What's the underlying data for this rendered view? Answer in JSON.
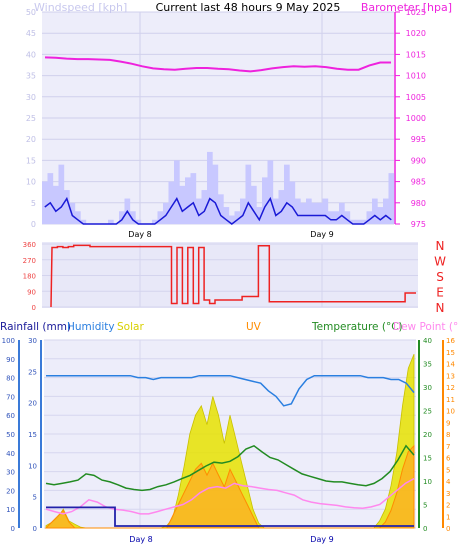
{
  "header": {
    "title": "Current last 48 hours 9 May 2025",
    "left_label": "Windspeed [kph]",
    "right_label": "Barometer [hpa]"
  },
  "colors": {
    "wind_fill": "#c8c8ff",
    "wind_line": "#1a1ad6",
    "barometer": "#ee22dd",
    "direction": "#ee2222",
    "humidity": "#2a7fe0",
    "solar": "#d8d000",
    "uv": "#ff8c00",
    "temperature": "#228b22",
    "dewpoint": "#ff88ee",
    "rain": "#2222aa",
    "left_axis": "#3a7ad8",
    "orange_axis": "#ff8800",
    "green_axis": "#228b22"
  },
  "chart_data": [
    {
      "type": "line",
      "name": "wind-barometer",
      "title": "Current last 48 hours 9 May 2025",
      "ylabel": "Windspeed [kph]",
      "y2label": "Barometer [hpa]",
      "x_ticks": [
        "Day 8",
        "Day 9"
      ],
      "ylim": [
        0,
        50
      ],
      "y_ticks": [
        0,
        5,
        10,
        15,
        20,
        25,
        30,
        35,
        40,
        45,
        50
      ],
      "y2lim": [
        975,
        1025
      ],
      "y2_ticks": [
        975,
        980,
        985,
        990,
        995,
        1000,
        1005,
        1010,
        1015,
        1020,
        1025
      ],
      "series": [
        {
          "name": "Windspeed [kph]",
          "axis": "left",
          "values": [
            4,
            5,
            3,
            4,
            6,
            2,
            1,
            0,
            0,
            0,
            0,
            0,
            0,
            0,
            1,
            3,
            1,
            0,
            0,
            0,
            0,
            1,
            2,
            4,
            6,
            3,
            4,
            5,
            2,
            3,
            6,
            5,
            2,
            1,
            0,
            1,
            2,
            5,
            3,
            1,
            4,
            6,
            2,
            3,
            5,
            4,
            2,
            2,
            2,
            2,
            2,
            2,
            1,
            1,
            2,
            1,
            0,
            0,
            0,
            1,
            2,
            1,
            2,
            1
          ]
        },
        {
          "name": "Wind gust [kph]",
          "axis": "left",
          "values": [
            10,
            12,
            9,
            14,
            8,
            5,
            3,
            1,
            0,
            0,
            0,
            0,
            1,
            0,
            3,
            6,
            3,
            1,
            0,
            0,
            1,
            3,
            5,
            10,
            15,
            9,
            11,
            12,
            6,
            8,
            17,
            14,
            7,
            4,
            2,
            3,
            6,
            14,
            9,
            4,
            11,
            15,
            6,
            8,
            14,
            10,
            6,
            5,
            6,
            5,
            5,
            6,
            3,
            3,
            5,
            3,
            1,
            1,
            1,
            3,
            6,
            4,
            6,
            12
          ]
        },
        {
          "name": "Barometer [hpa]",
          "axis": "right",
          "values": [
            1014.3,
            1014.2,
            1014.0,
            1013.9,
            1013.9,
            1013.8,
            1013.7,
            1013.3,
            1012.8,
            1012.2,
            1011.7,
            1011.5,
            1011.4,
            1011.6,
            1011.8,
            1011.8,
            1011.6,
            1011.5,
            1011.2,
            1011.0,
            1011.3,
            1011.7,
            1012.0,
            1012.2,
            1012.1,
            1012.2,
            1012.0,
            1011.6,
            1011.4,
            1011.4,
            1012.4,
            1013.1,
            1013.1
          ]
        }
      ]
    },
    {
      "type": "line",
      "name": "wind-direction",
      "y_ticks": [
        0,
        90,
        180,
        270,
        360
      ],
      "ylim": [
        0,
        360
      ],
      "compass_labels": [
        "N",
        "W",
        "S",
        "E",
        "N"
      ],
      "series": [
        {
          "name": "Wind direction",
          "values": [
            340,
            345,
            340,
            345,
            352,
            352,
            352,
            345,
            345,
            345,
            345,
            345,
            345,
            345,
            345,
            345,
            345,
            345,
            345,
            345,
            345,
            345,
            20,
            340,
            20,
            340,
            20,
            340,
            40,
            20,
            40,
            40,
            40,
            40,
            40,
            60,
            60,
            60,
            350,
            350,
            30,
            30,
            30,
            30,
            30,
            30,
            30,
            30,
            30,
            30,
            30,
            30,
            30,
            30,
            30,
            30,
            30,
            30,
            30,
            30,
            30,
            30,
            30,
            30,
            30,
            80,
            80,
            80
          ]
        }
      ]
    },
    {
      "type": "line",
      "name": "climate",
      "legend": [
        "Rainfall (mm)",
        "Humidity",
        "Solar",
        "UV",
        "Temperature (°C)",
        "Dew Point (°C)"
      ],
      "x_ticks": [
        "Day 8",
        "Day 9"
      ],
      "axis_humidity": [
        0,
        10,
        20,
        30,
        40,
        50,
        60,
        70,
        80,
        90,
        100
      ],
      "axis_rain": [
        0,
        5,
        10,
        15,
        20,
        25,
        30
      ],
      "axis_temperature": [
        0,
        5,
        10,
        15,
        20,
        25,
        30,
        35,
        40
      ],
      "axis_uv": [
        0,
        1,
        2,
        3,
        4,
        5,
        6,
        7,
        8,
        9,
        10,
        11,
        12,
        13,
        14,
        15,
        16
      ],
      "series": [
        {
          "name": "Humidity",
          "values": [
            81,
            81,
            81,
            81,
            81,
            81,
            81,
            81,
            81,
            81,
            81,
            81,
            80,
            80,
            79,
            80,
            80,
            80,
            80,
            80,
            81,
            81,
            81,
            81,
            81,
            80,
            79,
            78,
            77,
            73,
            70,
            65,
            66,
            74,
            79,
            81,
            81,
            81,
            81,
            81,
            81,
            81,
            80,
            80,
            80,
            79,
            79,
            77,
            72
          ]
        },
        {
          "name": "Temperature (°C)",
          "values": [
            9.5,
            9.2,
            9.5,
            9.8,
            10.2,
            11.5,
            11.2,
            10.2,
            9.8,
            9.2,
            8.5,
            8.2,
            8.0,
            8.2,
            8.8,
            9.2,
            9.8,
            10.5,
            11.2,
            12.2,
            13.2,
            14.0,
            13.8,
            14.2,
            15.2,
            16.8,
            17.5,
            16.2,
            15.0,
            14.5,
            13.5,
            12.5,
            11.5,
            11.0,
            10.5,
            10.0,
            9.8,
            9.8,
            9.5,
            9.2,
            9.0,
            9.5,
            10.5,
            12.0,
            14.5,
            17.5,
            15.5
          ]
        },
        {
          "name": "Dew Point (°C)",
          "values": [
            4,
            3.5,
            3,
            3.5,
            4.5,
            6,
            5.5,
            4.5,
            4,
            3.8,
            3.5,
            3,
            3,
            3.5,
            4,
            4.5,
            5,
            6,
            7.5,
            8.5,
            8.8,
            8.5,
            9.5,
            9,
            8.8,
            8.5,
            8.2,
            8,
            7.5,
            7,
            6,
            5.5,
            5.2,
            5,
            4.8,
            4.5,
            4.3,
            4.2,
            4.5,
            5,
            6.5,
            8,
            9.5,
            10.5
          ]
        },
        {
          "name": "Solar",
          "values": [
            0.5,
            1.2,
            2.2,
            4,
            1.5,
            0.8,
            0.2,
            0,
            0,
            0,
            0,
            0,
            0,
            0,
            0,
            0,
            0,
            0,
            0,
            0,
            0,
            0.5,
            2,
            7,
            13,
            20,
            24,
            26,
            22,
            28,
            24,
            18,
            24,
            19,
            14,
            9,
            4,
            1,
            0,
            0,
            0,
            0,
            0,
            0,
            0,
            0,
            0,
            0,
            0,
            0,
            0,
            0,
            0,
            0,
            0,
            0,
            0,
            0,
            1.5,
            4,
            9,
            16,
            26,
            34,
            37
          ]
        },
        {
          "name": "UV",
          "values": [
            0,
            0.5,
            1,
            1.5,
            0.5,
            0,
            0,
            0,
            0,
            0,
            0,
            0,
            0,
            0,
            0,
            0,
            0,
            0,
            0,
            0,
            0,
            0,
            1,
            2,
            3,
            4,
            5,
            5.5,
            4.5,
            5.5,
            4.5,
            3.5,
            5,
            4,
            3,
            2,
            1,
            0,
            0,
            0,
            0,
            0,
            0,
            0,
            0,
            0,
            0,
            0,
            0,
            0,
            0,
            0,
            0,
            0,
            0,
            0,
            0,
            0,
            0,
            0.5,
            1.5,
            3,
            5,
            6.5,
            7
          ]
        },
        {
          "name": "Rainfall (mm)",
          "values": [
            3,
            3,
            3,
            3,
            3,
            3,
            3,
            3,
            3,
            0,
            0,
            0,
            0,
            0,
            0,
            0,
            0,
            0,
            0,
            0,
            0,
            0,
            0,
            0,
            0,
            0,
            0,
            0,
            0,
            0,
            0,
            0,
            0,
            0,
            0,
            0,
            0,
            0,
            0,
            0,
            0,
            0,
            0,
            0,
            0,
            0,
            0,
            0,
            0
          ]
        }
      ]
    }
  ]
}
